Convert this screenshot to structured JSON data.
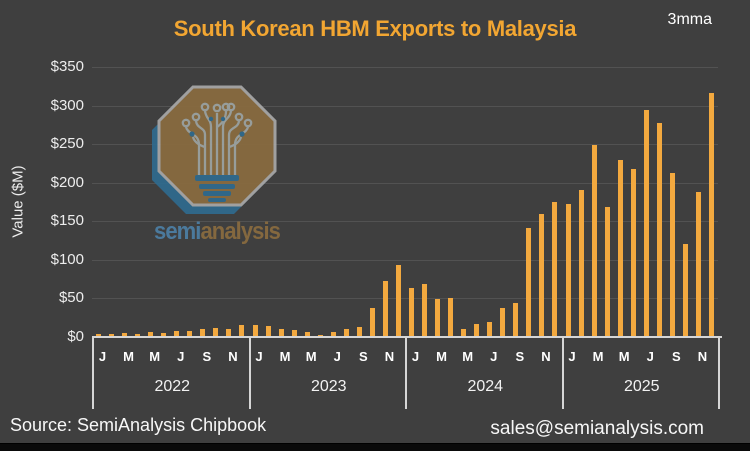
{
  "header": {
    "title": "South Korean HBM Exports to Malaysia",
    "tag": "3mma"
  },
  "chart_data": {
    "type": "bar",
    "title": "South Korean HBM Exports to Malaysia",
    "subtitle_tag": "3mma",
    "xlabel": "",
    "ylabel": "Value ($M)",
    "ylim": [
      0,
      350
    ],
    "y_ticks": [
      "$0",
      "$50",
      "$100",
      "$150",
      "$200",
      "$250",
      "$300",
      "$350"
    ],
    "grid": "horizontal",
    "bar_color": "#F3A93F",
    "units": "USD millions",
    "years": [
      "2022",
      "2023",
      "2024",
      "2025"
    ],
    "month_tick_letters": [
      "J",
      "M",
      "M",
      "J",
      "S",
      "N"
    ],
    "x": [
      "2022-01",
      "2022-02",
      "2022-03",
      "2022-04",
      "2022-05",
      "2022-06",
      "2022-07",
      "2022-08",
      "2022-09",
      "2022-10",
      "2022-11",
      "2022-12",
      "2023-01",
      "2023-02",
      "2023-03",
      "2023-04",
      "2023-05",
      "2023-06",
      "2023-07",
      "2023-08",
      "2023-09",
      "2023-10",
      "2023-11",
      "2023-12",
      "2024-01",
      "2024-02",
      "2024-03",
      "2024-04",
      "2024-05",
      "2024-06",
      "2024-07",
      "2024-08",
      "2024-09",
      "2024-10",
      "2024-11",
      "2024-12",
      "2025-01",
      "2025-02",
      "2025-03",
      "2025-04",
      "2025-05",
      "2025-06",
      "2025-07",
      "2025-08",
      "2025-09",
      "2025-10",
      "2025-11",
      "2025-12"
    ],
    "values": [
      3.5,
      4.5,
      5.5,
      4.5,
      6.5,
      5.5,
      8,
      8,
      10,
      12,
      10,
      15,
      15,
      14,
      11,
      9,
      6,
      3,
      7,
      10,
      13,
      38,
      72,
      93,
      63,
      69,
      49,
      50,
      10,
      17,
      20,
      38,
      44,
      141,
      160,
      175,
      173,
      190,
      249,
      169,
      229,
      218,
      294,
      277,
      213,
      120,
      188,
      316
    ]
  },
  "colors": {
    "background": "#3F3F3F",
    "title": "#F2A632",
    "bar": "#F3A93F",
    "gridline": "#525252",
    "axis": "#D6D6D6",
    "text": "#FFFFFF",
    "logo_tan": "#8A6C3F",
    "logo_blue": "#2F6B8F"
  },
  "watermark": {
    "semi": "semi",
    "analysis": "analysis"
  },
  "footer": {
    "source": "Source: SemiAnalysis Chipbook",
    "email": "sales@semianalysis.com"
  }
}
